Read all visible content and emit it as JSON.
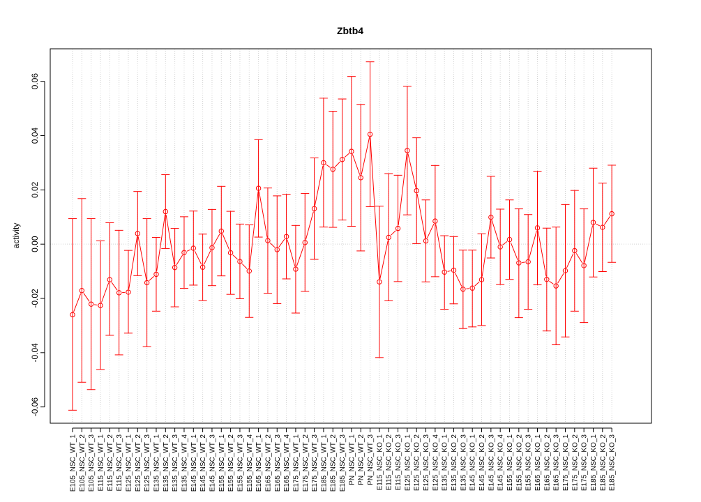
{
  "chart_data": {
    "type": "line",
    "title": "Zbtb4",
    "xlabel": "",
    "ylabel": "activity",
    "ylim": [
      -0.066,
      0.072
    ],
    "yticks": [
      -0.06,
      -0.04,
      -0.02,
      0.0,
      0.02,
      0.04,
      0.06
    ],
    "ytick_labels": [
      "-0.06",
      "-0.04",
      "-0.02",
      "0.00",
      "0.02",
      "0.04",
      "0.06"
    ],
    "grid": "vertical dotted at each category; horizontal dotted at 0",
    "color": "#ff0000",
    "categories": [
      "E105_NSC_WT_1",
      "E105_NSC_WT_2",
      "E105_NSC_WT_3",
      "E115_NSC_WT_1",
      "E115_NSC_WT_2",
      "E115_NSC_WT_3",
      "E125_NSC_WT_1",
      "E125_NSC_WT_2",
      "E125_NSC_WT_3",
      "E135_NSC_WT_1",
      "E135_NSC_WT_2",
      "E135_NSC_WT_3",
      "E135_NSC_WT_4",
      "E145_NSC_WT_1",
      "E145_NSC_WT_2",
      "E145_NSC_WT_3",
      "E155_NSC_WT_1",
      "E155_NSC_WT_2",
      "E155_NSC_WT_3",
      "E155_NSC_WT_4",
      "E165_NSC_WT_1",
      "E165_NSC_WT_2",
      "E165_NSC_WT_3",
      "E165_NSC_WT_4",
      "E175_NSC_WT_1",
      "E175_NSC_WT_2",
      "E175_NSC_WT_3",
      "E185_NSC_WT_1",
      "E185_NSC_WT_2",
      "E185_NSC_WT_3",
      "PN_NSC_WT_1",
      "PN_NSC_WT_2",
      "PN_NSC_WT_3",
      "E115_NSC_KO_1",
      "E115_NSC_KO_2",
      "E115_NSC_KO_3",
      "E125_NSC_KO_1",
      "E125_NSC_KO_2",
      "E125_NSC_KO_3",
      "E125_NSC_KO_4",
      "E135_NSC_KO_1",
      "E135_NSC_KO_2",
      "E135_NSC_KO_3",
      "E145_NSC_KO_1",
      "E145_NSC_KO_2",
      "E145_NSC_KO_3",
      "E145_NSC_KO_4",
      "E155_NSC_KO_1",
      "E155_NSC_KO_2",
      "E155_NSC_KO_3",
      "E165_NSC_KO_1",
      "E165_NSC_KO_2",
      "E165_NSC_KO_3",
      "E175_NSC_KO_1",
      "E175_NSC_KO_2",
      "E175_NSC_KO_3",
      "E185_NSC_KO_1",
      "E185_NSC_KO_2",
      "E185_NSC_KO_3"
    ],
    "values": [
      -0.026,
      -0.0171,
      -0.0221,
      -0.0226,
      -0.0131,
      -0.0179,
      -0.0177,
      0.0039,
      -0.0142,
      -0.0111,
      0.012,
      -0.0086,
      -0.0031,
      -0.0015,
      -0.0085,
      -0.0013,
      0.0048,
      -0.0032,
      -0.0064,
      -0.0099,
      0.0206,
      0.0013,
      -0.002,
      0.0028,
      -0.0092,
      0.0006,
      0.0131,
      0.03,
      0.0276,
      0.0312,
      0.0342,
      0.0245,
      0.0405,
      -0.0139,
      0.0025,
      0.0058,
      0.0345,
      0.0197,
      0.0012,
      0.0085,
      -0.0103,
      -0.0096,
      -0.0166,
      -0.0162,
      -0.0131,
      0.0099,
      -0.001,
      0.0017,
      -0.0069,
      -0.0065,
      0.006,
      -0.013,
      -0.0154,
      -0.0098,
      -0.0024,
      -0.0079,
      0.008,
      0.0062,
      0.0112
    ],
    "upper": [
      0.0094,
      0.0168,
      0.0094,
      0.0012,
      0.0079,
      0.0051,
      -0.0023,
      0.0194,
      0.0094,
      0.0025,
      0.0256,
      0.0058,
      0.0101,
      0.0122,
      0.0037,
      0.0128,
      0.0213,
      0.0121,
      0.0074,
      0.0071,
      0.0385,
      0.0207,
      0.0178,
      0.0184,
      0.0069,
      0.0187,
      0.0318,
      0.0538,
      0.049,
      0.0535,
      0.0618,
      0.0515,
      0.0672,
      0.014,
      0.026,
      0.0254,
      0.0582,
      0.0392,
      0.0163,
      0.029,
      0.0031,
      0.0028,
      -0.0022,
      -0.0022,
      0.0038,
      0.025,
      0.0129,
      0.0163,
      0.013,
      0.0109,
      0.0269,
      0.0059,
      0.0063,
      0.0146,
      0.0198,
      0.013,
      0.028,
      0.0225,
      0.0291
    ],
    "lower": [
      -0.0612,
      -0.0509,
      -0.0536,
      -0.0462,
      -0.0336,
      -0.0408,
      -0.0328,
      -0.0116,
      -0.0378,
      -0.0247,
      -0.0016,
      -0.0231,
      -0.0163,
      -0.0151,
      -0.0208,
      -0.0153,
      -0.0117,
      -0.0185,
      -0.0201,
      -0.027,
      0.0026,
      -0.0181,
      -0.0219,
      -0.0128,
      -0.0254,
      -0.0174,
      -0.0056,
      0.0063,
      0.0062,
      0.0089,
      0.0066,
      -0.0025,
      0.0138,
      -0.0418,
      -0.0209,
      -0.0138,
      0.0108,
      0.0002,
      -0.0139,
      -0.012,
      -0.024,
      -0.022,
      -0.0311,
      -0.0305,
      -0.03,
      -0.0051,
      -0.0149,
      -0.013,
      -0.0271,
      -0.024,
      -0.015,
      -0.032,
      -0.0371,
      -0.0342,
      -0.0247,
      -0.0289,
      -0.0121,
      -0.0101,
      -0.0067
    ]
  }
}
